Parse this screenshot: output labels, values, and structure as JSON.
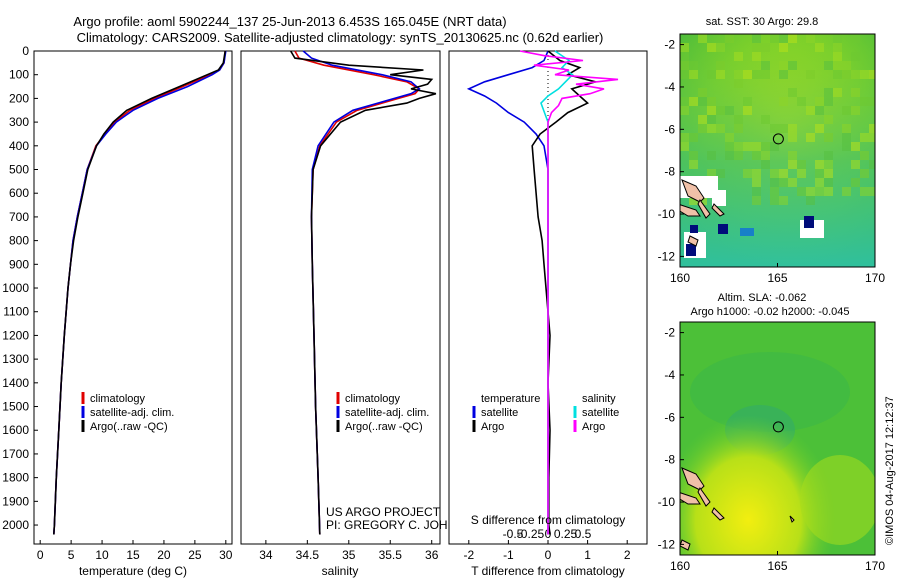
{
  "title_line1": "Argo profile: aoml 5902244_137 25-Jun-2013 6.453S 165.045E (NRT data)",
  "title_line2": "Climatology: CARS2009. Satellite-adjusted climatology: synTS_20130625.nc (0.62d earlier)",
  "credit_line1": "US ARGO PROJECT",
  "credit_line2": "PI: GREGORY C. JOHNSON",
  "watermark": "©IMOS 04-Aug-2017 12:12:37",
  "colors": {
    "climatology": "#e00000",
    "satellite": "#0000e0",
    "argo": "#000000",
    "sal_satellite": "#00e0e0",
    "sal_argo": "#ff00ff"
  },
  "chart_data": [
    {
      "type": "line",
      "name": "temperature",
      "xlabel": "temperature (deg C)",
      "ylabel": "",
      "xlim": [
        -1,
        31
      ],
      "ylim": [
        2080,
        0
      ],
      "xticks": [
        0,
        5,
        10,
        15,
        20,
        25,
        30
      ],
      "xtick_labels": [
        "0",
        "5",
        "10",
        "15",
        "20",
        "25",
        "30"
      ],
      "yticks": [
        0,
        100,
        200,
        300,
        400,
        500,
        600,
        700,
        800,
        900,
        1000,
        1100,
        1200,
        1300,
        1400,
        1500,
        1600,
        1700,
        1800,
        1900,
        2000
      ],
      "ytick_labels": [
        "0",
        "100",
        "200",
        "300",
        "400",
        "500",
        "600",
        "700",
        "800",
        "900",
        "1000",
        "1100",
        "1200",
        "1300",
        "1400",
        "1500",
        "1600",
        "1700",
        "1800",
        "1900",
        "2000"
      ],
      "legend": {
        "placement": "lower-left",
        "entries": [
          "climatology",
          "satellite-adj. clim.",
          "Argo(..raw -QC)"
        ]
      },
      "series": [
        {
          "name": "climatology",
          "color": "#e00000",
          "depth": [
            0,
            50,
            80,
            100,
            150,
            200,
            250,
            300,
            350,
            400,
            500,
            600,
            700,
            800,
            900,
            1000,
            1200,
            1400,
            1600,
            1800,
            2000,
            2040
          ],
          "values": [
            29.9,
            29.7,
            29.0,
            27.5,
            23.0,
            18.5,
            14.5,
            12.0,
            10.5,
            9.0,
            7.6,
            6.8,
            6.0,
            5.3,
            4.9,
            4.5,
            3.9,
            3.4,
            3.0,
            2.6,
            2.3,
            2.2
          ]
        },
        {
          "name": "satellite-adj. clim.",
          "color": "#0000e0",
          "depth": [
            0,
            50,
            80,
            100,
            150,
            200,
            250,
            300,
            350,
            400,
            500,
            600,
            700,
            800,
            900,
            1000,
            1200,
            1400,
            1600,
            1800,
            2000,
            2040
          ],
          "values": [
            30.0,
            29.7,
            29.0,
            27.8,
            23.8,
            19.0,
            15.0,
            12.3,
            10.6,
            9.1,
            7.6,
            6.8,
            6.0,
            5.3,
            4.9,
            4.5,
            3.9,
            3.4,
            3.0,
            2.6,
            2.3,
            2.2
          ]
        },
        {
          "name": "Argo(..raw -QC)",
          "color": "#000000",
          "depth": [
            0,
            50,
            80,
            100,
            150,
            200,
            250,
            300,
            350,
            400,
            500,
            600,
            700,
            800,
            900,
            1000,
            1200,
            1400,
            1600,
            1800,
            2000,
            2040
          ],
          "values": [
            29.9,
            29.6,
            28.8,
            27.0,
            22.5,
            18.0,
            14.0,
            11.8,
            10.3,
            9.1,
            7.7,
            6.9,
            6.1,
            5.4,
            4.9,
            4.5,
            3.9,
            3.4,
            3.0,
            2.6,
            2.3,
            2.2
          ]
        }
      ]
    },
    {
      "type": "line",
      "name": "salinity",
      "xlabel": "salinity",
      "xlim": [
        33.7,
        36.1
      ],
      "ylim": [
        2080,
        0
      ],
      "xticks": [
        34,
        34.5,
        35,
        35.5,
        36
      ],
      "xtick_labels": [
        "34",
        "34.5",
        "35",
        "35.5",
        "36"
      ],
      "legend": {
        "placement": "lower-left",
        "entries": [
          "climatology",
          "satellite-adj. clim.",
          "Argo(..raw -QC)"
        ]
      },
      "series": [
        {
          "name": "climatology",
          "color": "#e00000",
          "depth": [
            0,
            30,
            60,
            100,
            130,
            160,
            180,
            200,
            250,
            300,
            400,
            500,
            700,
            900,
            1200,
            1500,
            1800,
            2040
          ],
          "values": [
            34.35,
            34.4,
            34.7,
            35.3,
            35.7,
            35.85,
            35.8,
            35.6,
            35.1,
            34.85,
            34.65,
            34.57,
            34.55,
            34.56,
            34.58,
            34.6,
            34.63,
            34.65
          ]
        },
        {
          "name": "satellite-adj. clim.",
          "color": "#0000e0",
          "depth": [
            0,
            30,
            60,
            100,
            130,
            160,
            180,
            200,
            250,
            300,
            400,
            500,
            700,
            900,
            1200,
            1500,
            1800,
            2040
          ],
          "values": [
            34.45,
            34.55,
            34.8,
            35.4,
            35.75,
            35.85,
            35.75,
            35.55,
            35.05,
            34.82,
            34.63,
            34.56,
            34.55,
            34.56,
            34.58,
            34.6,
            34.63,
            34.65
          ]
        },
        {
          "name": "Argo(..raw -QC)",
          "color": "#000000",
          "depth": [
            0,
            30,
            60,
            80,
            100,
            120,
            140,
            160,
            180,
            200,
            220,
            250,
            300,
            400,
            500,
            700,
            900,
            1200,
            1500,
            1800,
            2040
          ],
          "values": [
            34.3,
            34.35,
            35.0,
            35.9,
            35.5,
            36.0,
            35.95,
            35.75,
            36.05,
            35.85,
            35.7,
            35.2,
            34.9,
            34.66,
            34.57,
            34.55,
            34.56,
            34.58,
            34.6,
            34.63,
            34.65
          ]
        }
      ]
    },
    {
      "type": "line",
      "name": "difference",
      "xlabel": "T difference from climatology",
      "xlabel_top": "S difference from climatology",
      "xlim": [
        -2.5,
        2.5
      ],
      "ylim": [
        2080,
        0
      ],
      "xticks": [
        -2,
        -1,
        0,
        1,
        2
      ],
      "xtick_labels": [
        "-2",
        "-1",
        "0",
        "1",
        "2"
      ],
      "sticks": [
        -0.5,
        -0.25,
        0,
        0.25,
        0.5
      ],
      "stick_labels": [
        "-0.5",
        "-0.25",
        "0",
        "0.25",
        "0.5"
      ],
      "legend_headers": [
        "temperature",
        "salinity"
      ],
      "legend_left": [
        "satellite",
        "Argo"
      ],
      "legend_right": [
        "satellite",
        "Argo"
      ],
      "series": [
        {
          "name": "T satellite",
          "color": "#0000e0",
          "depth": [
            0,
            40,
            70,
            100,
            130,
            160,
            190,
            220,
            260,
            300,
            350,
            400,
            500,
            700,
            1000,
            2040
          ],
          "values": [
            0,
            -0.1,
            -0.4,
            -1.0,
            -1.6,
            -2.0,
            -1.6,
            -1.3,
            -1.0,
            -0.6,
            -0.3,
            -0.1,
            0,
            0,
            0,
            0
          ]
        },
        {
          "name": "T Argo",
          "color": "#000000",
          "depth": [
            0,
            40,
            70,
            100,
            130,
            160,
            190,
            220,
            260,
            300,
            350,
            400,
            500,
            600,
            700,
            800,
            900,
            1000,
            1200,
            1400,
            1600,
            1800,
            2000,
            2040
          ],
          "values": [
            0,
            0.3,
            0.8,
            0.5,
            1.2,
            0.6,
            0.8,
            1.0,
            0.5,
            0.2,
            -0.2,
            -0.4,
            -0.35,
            -0.3,
            -0.25,
            -0.15,
            -0.1,
            -0.05,
            0.05,
            0.0,
            0.05,
            0.02,
            0.02,
            0.05
          ]
        },
        {
          "name": "S satellite",
          "color": "#00e0e0",
          "depth": [
            0,
            40,
            70,
            100,
            130,
            160,
            190,
            220,
            260,
            300,
            400,
            600,
            1000,
            2040
          ],
          "values": [
            0.1,
            0.3,
            0.2,
            0.35,
            0.25,
            0.15,
            0.0,
            -0.1,
            -0.05,
            0.0,
            0.0,
            0.0,
            0.0,
            0.0
          ]
        },
        {
          "name": "S Argo",
          "color": "#ff00ff",
          "depth": [
            0,
            20,
            40,
            60,
            80,
            100,
            120,
            140,
            160,
            180,
            200,
            230,
            260,
            300,
            400,
            600,
            1000,
            2040
          ],
          "values": [
            -0.4,
            -0.05,
            0.5,
            -0.2,
            0.3,
            0.1,
            1.0,
            0.4,
            0.8,
            0.6,
            0.2,
            0.15,
            0.05,
            0.0,
            0.0,
            0.0,
            0.0,
            0.0
          ]
        }
      ]
    },
    {
      "type": "heatmap",
      "name": "sst-map",
      "title": "sat. SST: 30 Argo: 29.8",
      "xlim": [
        160,
        170
      ],
      "ylim": [
        -12.5,
        -1.5
      ],
      "xticks": [
        160,
        165,
        170
      ],
      "xtick_labels": [
        "160",
        "165",
        "170"
      ],
      "yticks": [
        -2,
        -4,
        -6,
        -8,
        -10,
        -12
      ],
      "ytick_labels": [
        "-2",
        "-4",
        "-6",
        "-8",
        "-10",
        "-12"
      ],
      "marker": {
        "lon": 165.045,
        "lat": -6.453
      }
    },
    {
      "type": "heatmap",
      "name": "sla-map",
      "title": "Altim. SLA: -0.062",
      "subtitle": "Argo h1000: -0.02 h2000: -0.045",
      "xlim": [
        160,
        170
      ],
      "ylim": [
        -12.5,
        -1.5
      ],
      "xticks": [
        160,
        165,
        170
      ],
      "xtick_labels": [
        "160",
        "165",
        "170"
      ],
      "yticks": [
        -2,
        -4,
        -6,
        -8,
        -10,
        -12
      ],
      "ytick_labels": [
        "-2",
        "-4",
        "-6",
        "-8",
        "-10",
        "-12"
      ],
      "marker": {
        "lon": 165.045,
        "lat": -6.453
      }
    }
  ]
}
